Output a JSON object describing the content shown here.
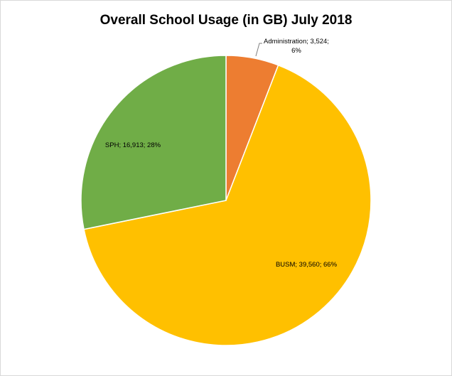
{
  "chart_data": {
    "type": "pie",
    "title": "Overall School Usage (in GB) July 2018",
    "slices": [
      {
        "name": "Administration",
        "value": 3524,
        "value_text": "3,524",
        "percent_text": "6%",
        "color": "#ED7D31",
        "label_lines": [
          "Administration; 3,524;",
          "6%"
        ]
      },
      {
        "name": "BUSM",
        "value": 39560,
        "value_text": "39,560",
        "percent_text": "66%",
        "color": "#FFC000",
        "label_lines": [
          "BUSM; 39,560; 66%"
        ]
      },
      {
        "name": "SPH",
        "value": 16913,
        "value_text": "16,913",
        "percent_text": "28%",
        "color": "#70AD47",
        "label_lines": [
          "SPH; 16,913; 28%"
        ]
      }
    ],
    "start_angle": "12 o'clock, clockwise",
    "legend": "none"
  }
}
